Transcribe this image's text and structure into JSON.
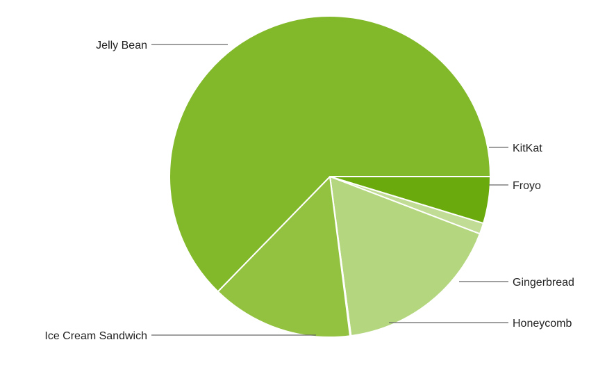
{
  "chart_data": {
    "type": "pie",
    "title": "",
    "slices": [
      {
        "label": "KitKat",
        "value": 4.7,
        "color": "#6aaa0c"
      },
      {
        "label": "Froyo",
        "value": 1.1,
        "color": "#c1dc95"
      },
      {
        "label": "Gingerbread",
        "value": 17.1,
        "color": "#b3d67f"
      },
      {
        "label": "Honeycomb",
        "value": 0.1,
        "color": "#b3d67f"
      },
      {
        "label": "Ice Cream Sandwich",
        "value": 14.3,
        "color": "#93c140"
      },
      {
        "label": "Jelly Bean",
        "value": 62.7,
        "color": "#82b92a"
      }
    ],
    "start_angle_degrees": 0,
    "direction": "clockwise"
  }
}
